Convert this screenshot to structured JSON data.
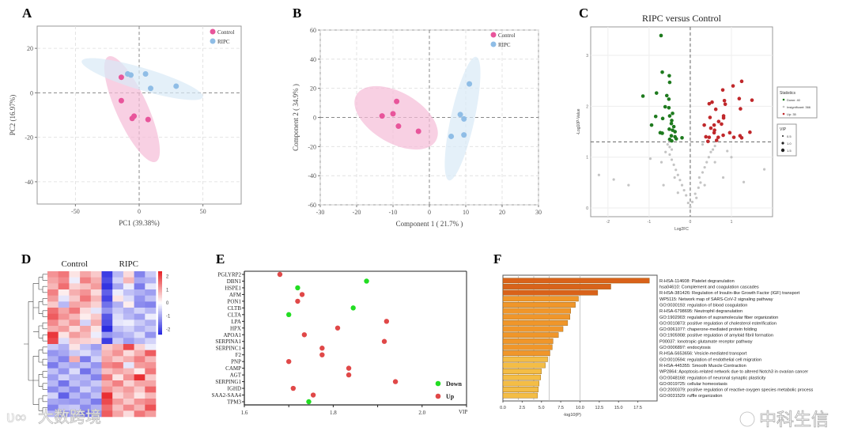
{
  "panel_labels": [
    "A",
    "B",
    "C",
    "D",
    "E",
    "F"
  ],
  "watermarks": [
    "大数跨境",
    "中科生信"
  ],
  "colors": {
    "control": "#e8559b",
    "ripc": "#8fbde6",
    "down": "#1e7a1e",
    "up": "#c0282b",
    "insig": "#c4c4c4",
    "e_down": "#22dd22",
    "e_up": "#e04848",
    "heat_high": "#e8262a",
    "heat_low": "#2b2be0"
  },
  "chart_data": [
    {
      "id": "A",
      "type": "scatter",
      "title": "",
      "xlabel": "PC1 (39.38%)",
      "ylabel": "PC2 (16.97%)",
      "xlim": [
        -80,
        80
      ],
      "ylim": [
        -50,
        30
      ],
      "xticks": [
        "-50",
        "0",
        "50"
      ],
      "xtick_values": [
        -50,
        0,
        50
      ],
      "yticks": [
        "20",
        "0",
        "-20",
        "-40"
      ],
      "ytick_values": [
        20,
        0,
        -20,
        -40
      ],
      "grid": true,
      "legend_position": "top-right",
      "series": [
        {
          "name": "Control",
          "points": [
            [
              -14,
              7
            ],
            [
              -14,
              -3.5
            ],
            [
              -5.5,
              -11.5
            ],
            [
              -4,
              -10.5
            ],
            [
              7,
              -12
            ]
          ]
        },
        {
          "name": "RIPC",
          "points": [
            [
              -9,
              8.5
            ],
            [
              -6.5,
              8
            ],
            [
              5,
              8.5
            ],
            [
              9,
              2
            ],
            [
              29,
              3
            ]
          ]
        }
      ]
    },
    {
      "id": "B",
      "type": "scatter",
      "title": "",
      "xlabel": "Component 1 ( 21.7% )",
      "ylabel": "Component 2 ( 34.9% )",
      "xlim": [
        -30,
        30
      ],
      "ylim": [
        -60,
        60
      ],
      "xticks": [
        "-30",
        "-20",
        "-10",
        "0",
        "10",
        "20",
        "30"
      ],
      "xtick_values": [
        -30,
        -20,
        -10,
        0,
        10,
        20,
        30
      ],
      "yticks": [
        "60",
        "40",
        "20",
        "0",
        "-20",
        "-40",
        "-60"
      ],
      "ytick_values": [
        60,
        40,
        20,
        0,
        -20,
        -40,
        -60
      ],
      "grid": true,
      "legend_position": "top-right",
      "series": [
        {
          "name": "Control",
          "points": [
            [
              -13,
              1
            ],
            [
              -10,
              2.5
            ],
            [
              -9,
              11
            ],
            [
              -8.5,
              -6
            ],
            [
              -3,
              -9.5
            ]
          ]
        },
        {
          "name": "RIPC",
          "points": [
            [
              6,
              -13
            ],
            [
              8.5,
              2
            ],
            [
              9.5,
              -1
            ],
            [
              9.5,
              -12
            ],
            [
              11,
              23
            ]
          ]
        }
      ]
    },
    {
      "id": "C",
      "type": "scatter",
      "title": "RIPC versus Control",
      "xlabel": "Log2FC",
      "ylabel": "-Log10P-Value",
      "xlim": [
        -2.42,
        2.0
      ],
      "ylim": [
        -0.17,
        3.56
      ],
      "xticks": [
        "-2",
        "-1",
        "0",
        "1"
      ],
      "xtick_values": [
        -2,
        -1,
        0,
        1
      ],
      "yticks": [
        "0",
        "1",
        "2",
        "3"
      ],
      "ytick_values": [
        0,
        1,
        2,
        3
      ],
      "threshold_y": 1.3,
      "threshold_x": 0,
      "grid": true,
      "legend_position": "right",
      "legend_title": "Statistics",
      "legend": [
        "Down: 40",
        "Insignificant: 366",
        "Up: 35"
      ],
      "vip_legend_title": "VIP",
      "vip_legend": [
        "0.5",
        "1.0",
        "1.5"
      ],
      "series": [
        {
          "name": "Down",
          "points": [
            [
              -0.71,
              3.39
            ],
            [
              -0.68,
              2.67
            ],
            [
              -0.51,
              2.6
            ],
            [
              -0.5,
              2.47
            ],
            [
              -1.15,
              2.2
            ],
            [
              -0.82,
              2.26
            ],
            [
              -0.57,
              2.21
            ],
            [
              -0.52,
              2.14
            ],
            [
              -0.61,
              1.99
            ],
            [
              -0.52,
              1.97
            ],
            [
              -0.84,
              1.8
            ],
            [
              -0.67,
              1.76
            ],
            [
              -0.94,
              1.63
            ],
            [
              -0.5,
              1.81
            ],
            [
              -0.43,
              1.86
            ],
            [
              -0.45,
              1.72
            ],
            [
              -0.46,
              1.66
            ],
            [
              -0.4,
              1.6
            ],
            [
              -0.51,
              1.55
            ],
            [
              -0.43,
              1.53
            ],
            [
              -0.37,
              1.5
            ],
            [
              -0.73,
              1.48
            ],
            [
              -0.68,
              1.47
            ],
            [
              -0.46,
              1.42
            ],
            [
              -0.37,
              1.4
            ],
            [
              -0.2,
              1.38
            ],
            [
              -0.5,
              1.35
            ],
            [
              -0.45,
              1.32
            ],
            [
              -0.34,
              1.36
            ]
          ]
        },
        {
          "name": "Up",
          "points": [
            [
              1.25,
              2.49
            ],
            [
              1.04,
              2.4
            ],
            [
              0.79,
              2.32
            ],
            [
              1.5,
              2.12
            ],
            [
              1.19,
              2.15
            ],
            [
              0.46,
              2.05
            ],
            [
              0.53,
              2.08
            ],
            [
              0.83,
              2.11
            ],
            [
              0.85,
              2.04
            ],
            [
              0.62,
              1.94
            ],
            [
              1.22,
              1.95
            ],
            [
              0.48,
              1.78
            ],
            [
              0.81,
              1.81
            ],
            [
              0.81,
              1.77
            ],
            [
              0.69,
              1.7
            ],
            [
              0.76,
              1.65
            ],
            [
              0.34,
              1.63
            ],
            [
              0.58,
              1.63
            ],
            [
              0.5,
              1.57
            ],
            [
              0.59,
              1.53
            ],
            [
              0.58,
              1.48
            ],
            [
              0.96,
              1.48
            ],
            [
              1.45,
              1.49
            ],
            [
              0.8,
              1.43
            ],
            [
              0.38,
              1.4
            ],
            [
              0.46,
              1.39
            ],
            [
              0.68,
              1.39
            ],
            [
              1.06,
              1.39
            ],
            [
              1.21,
              1.42
            ],
            [
              1.25,
              1.38
            ],
            [
              0.64,
              1.33
            ],
            [
              0.43,
              1.31
            ]
          ]
        },
        {
          "name": "Insignificant",
          "points": [
            [
              0,
              0.02
            ],
            [
              -0.05,
              0.1
            ],
            [
              0.05,
              0.12
            ],
            [
              -0.1,
              0.25
            ],
            [
              0.12,
              0.28
            ],
            [
              -0.15,
              0.35
            ],
            [
              0.2,
              0.4
            ],
            [
              -0.2,
              0.45
            ],
            [
              0.25,
              0.5
            ],
            [
              -0.25,
              0.55
            ],
            [
              0.22,
              0.6
            ],
            [
              -0.3,
              0.65
            ],
            [
              0.3,
              0.7
            ],
            [
              -0.35,
              0.75
            ],
            [
              0.35,
              0.8
            ],
            [
              -0.4,
              0.85
            ],
            [
              0.4,
              0.9
            ],
            [
              -0.45,
              0.95
            ],
            [
              0.45,
              1.0
            ],
            [
              -0.5,
              1.05
            ],
            [
              0.5,
              1.1
            ],
            [
              -0.45,
              1.15
            ],
            [
              0.55,
              1.15
            ],
            [
              -0.5,
              1.2
            ],
            [
              0.6,
              1.22
            ],
            [
              -0.55,
              1.25
            ],
            [
              0.3,
              1.25
            ],
            [
              -2.22,
              0.65
            ],
            [
              -1.86,
              0.56
            ],
            [
              -1.5,
              0.45
            ],
            [
              -0.97,
              0.97
            ],
            [
              1.0,
              1.0
            ],
            [
              1.3,
              0.51
            ],
            [
              1.8,
              0.76
            ],
            [
              -0.7,
              0.9
            ],
            [
              0.9,
              1.12
            ],
            [
              0.8,
              0.6
            ],
            [
              -0.65,
              0.45
            ],
            [
              0.15,
              0.2
            ],
            [
              -0.3,
              0.3
            ],
            [
              0.35,
              0.45
            ],
            [
              -0.38,
              0.6
            ],
            [
              0.6,
              0.9
            ],
            [
              -0.6,
              1.1
            ]
          ]
        }
      ]
    },
    {
      "id": "D",
      "type": "heatmap",
      "column_groups": [
        "Control",
        "RIPC"
      ],
      "colorbar_ticks": [
        "2",
        "1",
        "0",
        "-1",
        "-2"
      ],
      "colorbar_values": [
        2,
        1,
        0,
        -1,
        -2
      ],
      "values": [
        [
          1.2,
          1.5,
          0.3,
          1.0,
          0.6,
          -2.2,
          -0.8,
          0.4,
          -1.4,
          -0.6
        ],
        [
          1.0,
          1.3,
          -0.2,
          1.4,
          0.9,
          -2.0,
          -0.5,
          0.8,
          -1.0,
          -0.9
        ],
        [
          0.8,
          1.6,
          0.5,
          0.7,
          1.1,
          -2.3,
          -1.0,
          -0.2,
          -1.5,
          -0.3
        ],
        [
          1.4,
          0.2,
          0.9,
          1.2,
          0.4,
          -1.8,
          -0.2,
          -0.7,
          -0.9,
          -1.1
        ],
        [
          1.1,
          -0.3,
          0.6,
          1.5,
          0.8,
          -2.1,
          0.3,
          -0.4,
          -1.2,
          -0.7
        ],
        [
          0.6,
          -0.8,
          1.0,
          0.9,
          0.5,
          -1.6,
          -0.9,
          0.2,
          -1.3,
          -1.4
        ],
        [
          1.6,
          1.0,
          1.5,
          0.4,
          -0.3,
          -1.2,
          -0.6,
          -0.9,
          -0.5,
          -0.8
        ],
        [
          1.8,
          1.2,
          0.8,
          0.2,
          0.6,
          -1.9,
          -0.4,
          -0.8,
          -1.1,
          -0.2
        ],
        [
          1.3,
          0.7,
          1.2,
          -0.5,
          0.9,
          -2.0,
          -0.3,
          -0.2,
          -0.6,
          -0.9
        ],
        [
          0.9,
          1.1,
          0.4,
          1.0,
          0.3,
          -2.4,
          -0.7,
          -0.5,
          -0.9,
          -0.6
        ],
        [
          2.2,
          0.3,
          1.1,
          0.8,
          -0.2,
          -1.2,
          -1.0,
          -0.8,
          -0.4,
          -1.2
        ],
        [
          2.0,
          -0.4,
          0.6,
          0.5,
          0.4,
          -2.2,
          -0.6,
          -1.1,
          -0.8,
          -0.5
        ],
        [
          -0.6,
          -0.9,
          0.3,
          -0.7,
          -1.1,
          0.6,
          0.9,
          2.0,
          0.5,
          -0.2
        ],
        [
          -1.2,
          -1.0,
          -0.6,
          -0.4,
          -0.8,
          0.8,
          1.2,
          0.4,
          0.9,
          1.8
        ],
        [
          -0.9,
          -1.4,
          0.9,
          -1.5,
          -0.5,
          1.0,
          0.6,
          0.9,
          1.4,
          0.8
        ],
        [
          -1.5,
          -0.8,
          -1.0,
          -0.7,
          -1.2,
          1.3,
          1.5,
          -0.3,
          1.1,
          1.2
        ],
        [
          -0.7,
          -1.2,
          -0.4,
          -1.6,
          -0.9,
          0.7,
          1.0,
          0.8,
          0.2,
          1.5
        ],
        [
          -1.1,
          -0.5,
          -0.9,
          -0.8,
          -1.4,
          1.5,
          0.3,
          1.2,
          2.3,
          0.6
        ],
        [
          -0.8,
          -1.6,
          -0.7,
          -1.0,
          -0.6,
          0.9,
          1.4,
          0.5,
          1.0,
          1.0
        ],
        [
          -1.3,
          -0.9,
          -1.3,
          -0.5,
          -1.0,
          1.2,
          0.8,
          1.1,
          0.6,
          1.7
        ],
        [
          -0.5,
          -1.8,
          -0.8,
          -1.2,
          -0.7,
          2.3,
          0.5,
          0.9,
          0.3,
          0.8
        ],
        [
          -1.0,
          -1.1,
          -1.2,
          -0.9,
          -1.5,
          2.0,
          1.1,
          0.6,
          1.2,
          1.4
        ],
        [
          -1.4,
          -0.7,
          -0.6,
          -1.3,
          -0.9,
          1.6,
          0.7,
          1.3,
          0.8,
          1.9
        ],
        [
          -0.8,
          -1.3,
          -1.0,
          -1.7,
          -1.2,
          1.8,
          1.0,
          0.4,
          1.5,
          1.1
        ]
      ]
    },
    {
      "id": "E",
      "type": "scatter",
      "xlabel": "VIP",
      "xlim": [
        1.6,
        2.1
      ],
      "xticks": [
        "1.6",
        "1.8",
        "2.0"
      ],
      "xtick_values": [
        1.6,
        1.8,
        2.0
      ],
      "legend": [
        "Down",
        "Up"
      ],
      "legend_position": "bottom-right",
      "genes": [
        "PGLYRP2",
        "DBN1",
        "HSPE1",
        "AFM",
        "PON1",
        "CLTB",
        "CLTA",
        "LPA",
        "HPX",
        "APOA1",
        "SERPINA1",
        "SERPINC1",
        "F2",
        "PNP",
        "CAMP",
        "AGT",
        "SERPING1",
        "IGHD",
        "SAA2-SAA4",
        "TPM3"
      ],
      "vip": [
        1.68,
        1.875,
        1.72,
        1.73,
        1.72,
        1.845,
        1.7,
        1.92,
        1.81,
        1.735,
        1.915,
        1.775,
        1.775,
        1.7,
        1.835,
        1.835,
        1.94,
        1.71,
        1.755,
        1.745
      ],
      "direction": [
        "Up",
        "Down",
        "Down",
        "Up",
        "Up",
        "Down",
        "Down",
        "Up",
        "Up",
        "Up",
        "Up",
        "Up",
        "Up",
        "Up",
        "Up",
        "Up",
        "Up",
        "Up",
        "Up",
        "Down"
      ]
    },
    {
      "id": "F",
      "type": "bar",
      "xlabel": "-log10(P)",
      "xlim": [
        0,
        20
      ],
      "xticks": [
        "0.0",
        "2.5",
        "5.0",
        "7.5",
        "10.0",
        "12.5",
        "15.0",
        "17.5"
      ],
      "xtick_values": [
        0,
        2.5,
        5,
        7.5,
        10,
        12.5,
        15,
        17.5
      ],
      "gridlines_x": [
        2,
        4,
        6,
        10
      ],
      "categories": [
        "R-HSA-114608: Platelet degranulation",
        "hsa04610: Complement and coagulation cascades",
        "R-HSA-381426: Regulation of Insulin-like Growth Factor (IGF) transport",
        "WP5115: Network map of SARS-CoV-2 signaling pathway",
        "GO:0030193: regulation of blood coagulation",
        "R-HSA-6798695: Neutrophil degranulation",
        "GO:1902903: regulation of supramolecular fiber organization",
        "GO:0010873: positive regulation of cholesterol esterification",
        "GO:0061077: chaperone-mediated protein folding",
        "GO:1905908: positive regulation of amyloid fibril formation",
        "P00037: Ionotropic glutamate receptor pathway",
        "GO:0006897: endocytosis",
        "R-HSA-5653656: Vesicle-mediated transport",
        "GO:0010594: regulation of endothelial cell migration",
        "R-HSA-445355: Smooth Muscle Contraction",
        "WP2864: Apoptosis-related network due to altered Notch3 in ovarian cancer",
        "GO:0048168: regulation of neuronal synaptic plasticity",
        "GO:0019725: cellular homeostasis",
        "GO:2000379: positive regulation of reactive oxygen species metabolic process",
        "GO:0031529: ruffle organization"
      ],
      "values": [
        19.0,
        14.0,
        12.3,
        9.8,
        9.4,
        8.8,
        8.7,
        8.4,
        7.8,
        7.2,
        6.5,
        6.4,
        6.1,
        5.8,
        5.5,
        5.0,
        4.9,
        4.7,
        4.6,
        4.5
      ]
    }
  ]
}
